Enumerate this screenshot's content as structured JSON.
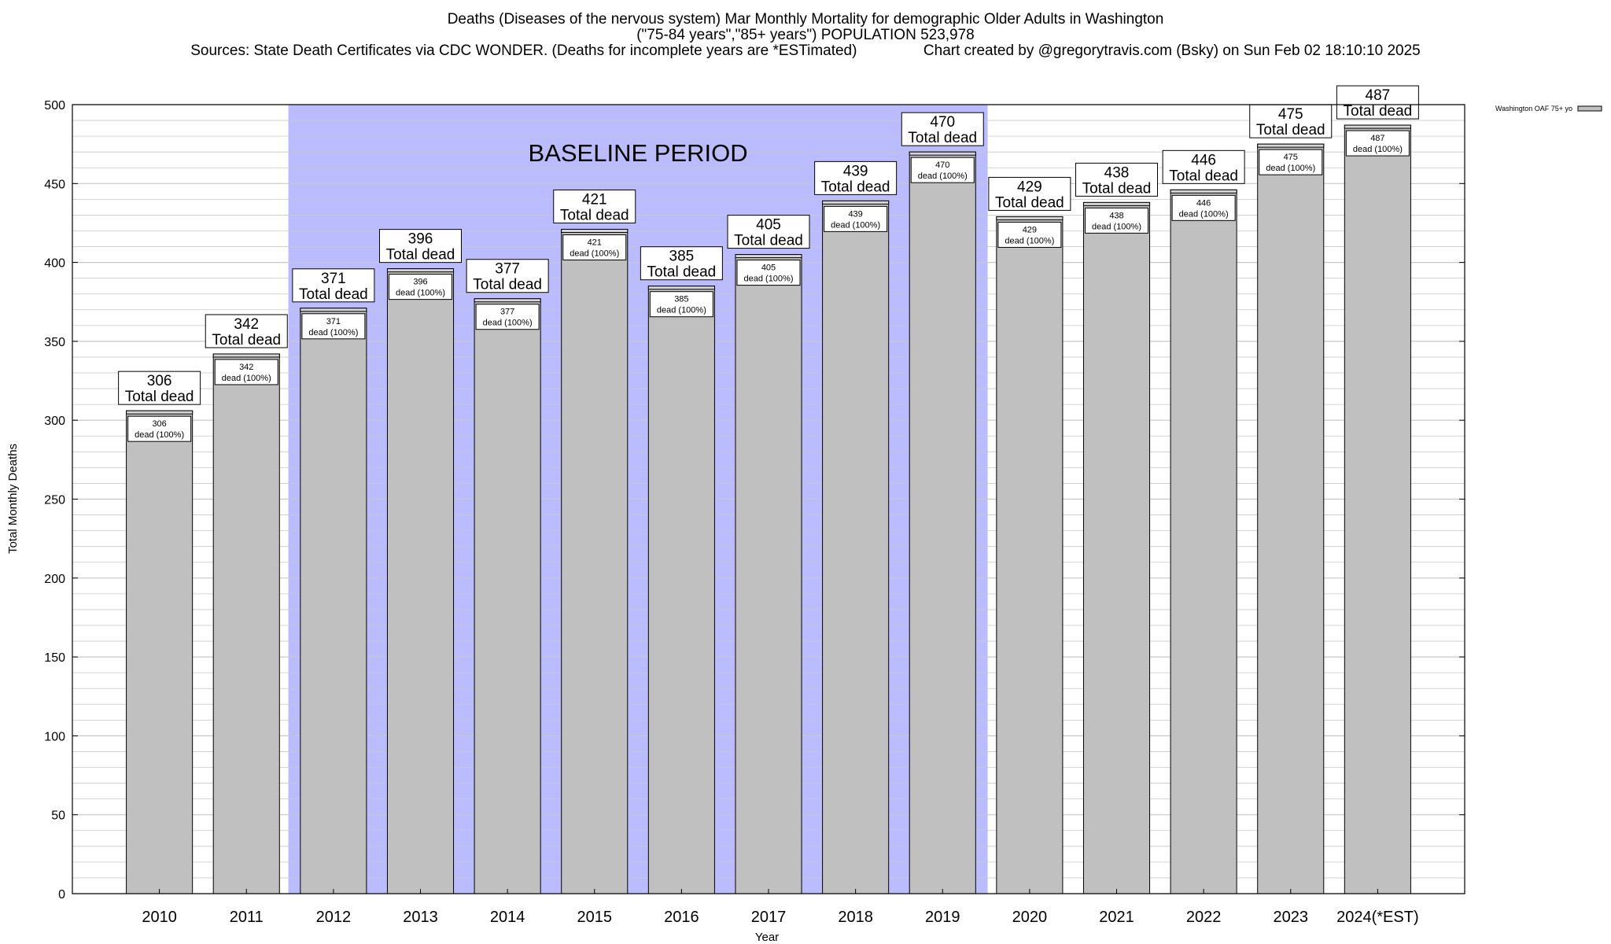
{
  "header": {
    "title_line1": "Deaths (Diseases of the nervous system) Mar Monthly Mortality for demographic Older Adults in Washington",
    "title_line2": "(\"75-84 years\",\"85+ years\") POPULATION 523,978",
    "title_line3": "Sources: State Death Certificates via CDC WONDER. (Deaths for incomplete years are *ESTimated)                Chart created by @gregorytravis.com (Bsky) on Sun Feb 02 18:10:10 2025"
  },
  "chart_data": {
    "type": "bar",
    "categories": [
      "2010",
      "2011",
      "2012",
      "2013",
      "2014",
      "2015",
      "2016",
      "2017",
      "2018",
      "2019",
      "2020",
      "2021",
      "2022",
      "2023",
      "2024(*EST)"
    ],
    "series": [
      {
        "name": "Washington OAF 75+ yo",
        "values": [
          306,
          342,
          371,
          396,
          377,
          421,
          385,
          405,
          439,
          470,
          429,
          438,
          446,
          475,
          487
        ]
      }
    ],
    "xlabel": "Year",
    "ylabel": "Total Monthly Deaths",
    "ylim": [
      0,
      500
    ],
    "yticks": [
      0,
      50,
      100,
      150,
      200,
      250,
      300,
      350,
      400,
      450,
      500
    ],
    "grid": true,
    "legend": "top-right",
    "top_label_suffix": "Total dead",
    "inner_label_suffix": "dead (100%)",
    "baseline": {
      "label": "BASELINE PERIOD",
      "start": "2012",
      "end": "2019"
    },
    "colors": {
      "bar": "#c0c0c0",
      "baseline": "#bbbbff",
      "grid": "#c8c8c8"
    }
  }
}
